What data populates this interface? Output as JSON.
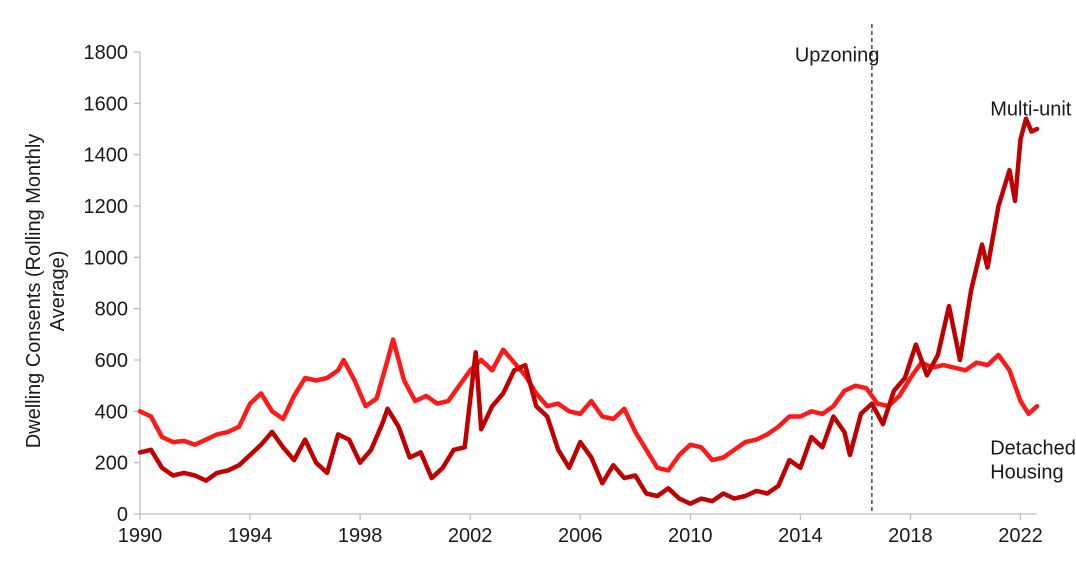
{
  "chart_data": {
    "type": "line",
    "title": "",
    "xlabel": "",
    "ylabel": "Dwelling Consents (Rolling Monthly Average)",
    "ylabel_lines": [
      "Dwelling Consents (Rolling Monthly",
      "Average)"
    ],
    "xlim": [
      1990,
      2022.6
    ],
    "ylim": [
      0,
      1800
    ],
    "x_ticks": [
      1990,
      1994,
      1998,
      2002,
      2006,
      2010,
      2014,
      2018,
      2022
    ],
    "y_ticks": [
      0,
      200,
      400,
      600,
      800,
      1000,
      1200,
      1400,
      1600,
      1800
    ],
    "grid": false,
    "legend": "none",
    "vline": {
      "x": 2016.6,
      "label": "Upzoning",
      "style": "dashed"
    },
    "series": [
      {
        "name": "Detached Housing",
        "color": "#ff1a1a",
        "points": [
          [
            1990,
            400
          ],
          [
            1990.4,
            380
          ],
          [
            1990.8,
            300
          ],
          [
            1991.2,
            280
          ],
          [
            1991.6,
            285
          ],
          [
            1992,
            270
          ],
          [
            1992.4,
            290
          ],
          [
            1992.8,
            310
          ],
          [
            1993.2,
            320
          ],
          [
            1993.6,
            340
          ],
          [
            1994,
            430
          ],
          [
            1994.4,
            470
          ],
          [
            1994.8,
            400
          ],
          [
            1995.2,
            370
          ],
          [
            1995.6,
            460
          ],
          [
            1996,
            530
          ],
          [
            1996.4,
            520
          ],
          [
            1996.8,
            530
          ],
          [
            1997.2,
            560
          ],
          [
            1997.4,
            600
          ],
          [
            1997.8,
            520
          ],
          [
            1998.2,
            420
          ],
          [
            1998.6,
            450
          ],
          [
            1999.0,
            600
          ],
          [
            1999.2,
            680
          ],
          [
            1999.6,
            520
          ],
          [
            2000,
            440
          ],
          [
            2000.4,
            460
          ],
          [
            2000.8,
            430
          ],
          [
            2001.2,
            440
          ],
          [
            2001.6,
            500
          ],
          [
            2002,
            560
          ],
          [
            2002.4,
            600
          ],
          [
            2002.8,
            560
          ],
          [
            2003.2,
            640
          ],
          [
            2003.6,
            590
          ],
          [
            2004,
            540
          ],
          [
            2004.4,
            470
          ],
          [
            2004.8,
            420
          ],
          [
            2005.2,
            430
          ],
          [
            2005.6,
            400
          ],
          [
            2006,
            390
          ],
          [
            2006.4,
            440
          ],
          [
            2006.8,
            380
          ],
          [
            2007.2,
            370
          ],
          [
            2007.6,
            410
          ],
          [
            2008,
            320
          ],
          [
            2008.4,
            250
          ],
          [
            2008.8,
            180
          ],
          [
            2009.2,
            170
          ],
          [
            2009.6,
            230
          ],
          [
            2010,
            270
          ],
          [
            2010.4,
            260
          ],
          [
            2010.8,
            210
          ],
          [
            2011.2,
            220
          ],
          [
            2011.6,
            250
          ],
          [
            2012,
            280
          ],
          [
            2012.4,
            290
          ],
          [
            2012.8,
            310
          ],
          [
            2013.2,
            340
          ],
          [
            2013.6,
            380
          ],
          [
            2014,
            380
          ],
          [
            2014.4,
            400
          ],
          [
            2014.8,
            390
          ],
          [
            2015.2,
            420
          ],
          [
            2015.6,
            480
          ],
          [
            2016,
            500
          ],
          [
            2016.4,
            490
          ],
          [
            2016.8,
            430
          ],
          [
            2017.2,
            420
          ],
          [
            2017.6,
            460
          ],
          [
            2018,
            530
          ],
          [
            2018.4,
            590
          ],
          [
            2018.8,
            570
          ],
          [
            2019.2,
            580
          ],
          [
            2019.6,
            570
          ],
          [
            2020,
            560
          ],
          [
            2020.4,
            590
          ],
          [
            2020.8,
            580
          ],
          [
            2021.2,
            620
          ],
          [
            2021.6,
            560
          ],
          [
            2022,
            440
          ],
          [
            2022.3,
            390
          ],
          [
            2022.6,
            420
          ]
        ]
      },
      {
        "name": "Multi-unit",
        "color": "#c00000",
        "points": [
          [
            1990,
            240
          ],
          [
            1990.4,
            250
          ],
          [
            1990.8,
            180
          ],
          [
            1991.2,
            150
          ],
          [
            1991.6,
            160
          ],
          [
            1992,
            150
          ],
          [
            1992.4,
            130
          ],
          [
            1992.8,
            160
          ],
          [
            1993.2,
            170
          ],
          [
            1993.6,
            190
          ],
          [
            1994,
            230
          ],
          [
            1994.4,
            270
          ],
          [
            1994.8,
            320
          ],
          [
            1995.2,
            260
          ],
          [
            1995.6,
            210
          ],
          [
            1996,
            290
          ],
          [
            1996.4,
            200
          ],
          [
            1996.8,
            160
          ],
          [
            1997.2,
            310
          ],
          [
            1997.6,
            290
          ],
          [
            1998.0,
            200
          ],
          [
            1998.4,
            250
          ],
          [
            1998.8,
            350
          ],
          [
            1999.0,
            410
          ],
          [
            1999.4,
            340
          ],
          [
            1999.8,
            220
          ],
          [
            2000.2,
            240
          ],
          [
            2000.6,
            140
          ],
          [
            2001,
            180
          ],
          [
            2001.4,
            250
          ],
          [
            2001.8,
            260
          ],
          [
            2002.2,
            630
          ],
          [
            2002.4,
            330
          ],
          [
            2002.8,
            420
          ],
          [
            2003.2,
            470
          ],
          [
            2003.6,
            560
          ],
          [
            2004,
            580
          ],
          [
            2004.4,
            420
          ],
          [
            2004.8,
            380
          ],
          [
            2005.2,
            250
          ],
          [
            2005.6,
            180
          ],
          [
            2006,
            280
          ],
          [
            2006.4,
            220
          ],
          [
            2006.8,
            120
          ],
          [
            2007.2,
            190
          ],
          [
            2007.6,
            140
          ],
          [
            2008,
            150
          ],
          [
            2008.4,
            80
          ],
          [
            2008.8,
            70
          ],
          [
            2009.2,
            100
          ],
          [
            2009.6,
            60
          ],
          [
            2010,
            40
          ],
          [
            2010.4,
            60
          ],
          [
            2010.8,
            50
          ],
          [
            2011.2,
            80
          ],
          [
            2011.6,
            60
          ],
          [
            2012,
            70
          ],
          [
            2012.4,
            90
          ],
          [
            2012.8,
            80
          ],
          [
            2013.2,
            110
          ],
          [
            2013.6,
            210
          ],
          [
            2014,
            180
          ],
          [
            2014.4,
            300
          ],
          [
            2014.8,
            260
          ],
          [
            2015.2,
            380
          ],
          [
            2015.6,
            320
          ],
          [
            2015.8,
            230
          ],
          [
            2016.2,
            390
          ],
          [
            2016.6,
            430
          ],
          [
            2017,
            350
          ],
          [
            2017.4,
            480
          ],
          [
            2017.8,
            530
          ],
          [
            2018.2,
            660
          ],
          [
            2018.6,
            540
          ],
          [
            2019,
            620
          ],
          [
            2019.4,
            810
          ],
          [
            2019.8,
            600
          ],
          [
            2020.2,
            870
          ],
          [
            2020.6,
            1050
          ],
          [
            2020.8,
            960
          ],
          [
            2021.2,
            1200
          ],
          [
            2021.6,
            1340
          ],
          [
            2021.8,
            1220
          ],
          [
            2022.0,
            1460
          ],
          [
            2022.2,
            1540
          ],
          [
            2022.4,
            1490
          ],
          [
            2022.6,
            1500
          ]
        ]
      }
    ],
    "annotations": [
      {
        "text": "Multi-unit",
        "x": 2020.9,
        "y": 1580
      },
      {
        "text": "Detached",
        "x": 2020.9,
        "y": 260
      },
      {
        "text": "Housing",
        "x": 2020.9,
        "y": 165
      },
      {
        "text": "Upzoning",
        "x": 2013.8,
        "y": 1790
      }
    ]
  }
}
